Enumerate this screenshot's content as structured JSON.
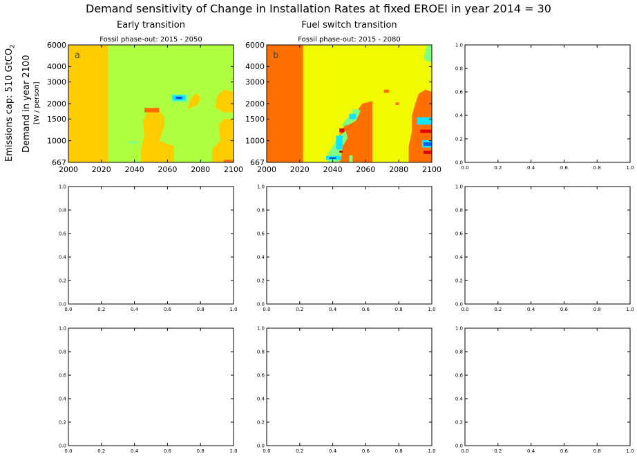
{
  "figure": {
    "suptitle": "Demand sensitivity of Change in Installation Rates at fixed EROEI in year 2014 = 30",
    "col_titles": [
      "Early transition",
      "Fuel switch transition",
      ""
    ],
    "row_label_main": "Emissions cap: 510 GtCO",
    "row_label_main_sub": "2",
    "ylabel_line1": "Demand in year 2100",
    "ylabel_line2": "[W / person]"
  },
  "colors": {
    "orange_dark": "#ff7000",
    "orange": "#ffcc00",
    "yellow": "#f0fa00",
    "green_yellow": "#adff40",
    "light_green": "#80ff80",
    "cyan": "#10e5ff",
    "blue": "#0060ff",
    "dark_blue": "#0010c0",
    "red": "#e00000",
    "dark_red": "#b00000"
  },
  "chart_data": [
    {
      "id": "a",
      "type": "heatmap",
      "panel_letter": "a",
      "title": "Fossil phase-out: 2015 - 2050",
      "x_ticks": [
        "2000",
        "2020",
        "2040",
        "2060",
        "2080",
        "2100"
      ],
      "y_ticks": [
        "667",
        "1000",
        "1500",
        "2000",
        "3000",
        "4000",
        "6000"
      ],
      "xlim": [
        2000,
        2100
      ],
      "ylim": [
        667,
        6000
      ],
      "y_scale": "log",
      "background": "green_yellow",
      "regions": [
        {
          "color": "orange",
          "pts": [
            [
              2000,
              667
            ],
            [
              2000,
              6000
            ],
            [
              2024,
              6000
            ],
            [
              2024,
              667
            ]
          ]
        },
        {
          "color": "orange",
          "pts": [
            [
              2044,
              667
            ],
            [
              2044,
              850
            ],
            [
              2046,
              1100
            ],
            [
              2045,
              1450
            ],
            [
              2048,
              1700
            ],
            [
              2055,
              1750
            ],
            [
              2058,
              1550
            ],
            [
              2058,
              1300
            ],
            [
              2055,
              1000
            ],
            [
              2064,
              900
            ],
            [
              2064,
              667
            ]
          ]
        },
        {
          "color": "orange",
          "pts": [
            [
              2072,
              1800
            ],
            [
              2074,
              2200
            ],
            [
              2078,
              2450
            ],
            [
              2080,
              2200
            ],
            [
              2078,
              1950
            ],
            [
              2074,
              1850
            ]
          ]
        },
        {
          "color": "orange",
          "pts": [
            [
              2087,
              667
            ],
            [
              2087,
              850
            ],
            [
              2092,
              1000
            ],
            [
              2091,
              1350
            ],
            [
              2094,
              1500
            ],
            [
              2100,
              1500
            ],
            [
              2100,
              667
            ]
          ]
        },
        {
          "color": "orange",
          "pts": [
            [
              2089,
              1850
            ],
            [
              2090,
              2300
            ],
            [
              2094,
              2600
            ],
            [
              2100,
              2500
            ],
            [
              2100,
              1700
            ],
            [
              2094,
              1700
            ]
          ]
        },
        {
          "color": "orange_dark",
          "pts": [
            [
              2046,
              1700
            ],
            [
              2046,
              1850
            ],
            [
              2055,
              1850
            ],
            [
              2055,
              1700
            ]
          ]
        },
        {
          "color": "orange_dark",
          "pts": [
            [
              2094,
              667
            ],
            [
              2094,
              700
            ],
            [
              2100,
              700
            ],
            [
              2100,
              667
            ]
          ]
        },
        {
          "color": "light_green",
          "pts": [
            [
              2036,
              950
            ],
            [
              2036,
              990
            ],
            [
              2042,
              990
            ],
            [
              2042,
              950
            ]
          ]
        },
        {
          "color": "light_green",
          "pts": [
            [
              2062,
              2050
            ],
            [
              2062,
              2400
            ],
            [
              2072,
              2400
            ],
            [
              2072,
              2050
            ]
          ]
        },
        {
          "color": "cyan",
          "pts": [
            [
              2063,
              2120
            ],
            [
              2063,
              2340
            ],
            [
              2071,
              2340
            ],
            [
              2071,
              2120
            ]
          ]
        },
        {
          "color": "blue",
          "pts": [
            [
              2065,
              2180
            ],
            [
              2065,
              2280
            ],
            [
              2069,
              2280
            ],
            [
              2069,
              2180
            ]
          ]
        },
        {
          "color": "dark_blue",
          "pts": [
            [
              2066,
              2210
            ],
            [
              2066,
              2250
            ],
            [
              2068,
              2250
            ],
            [
              2068,
              2210
            ]
          ]
        }
      ]
    },
    {
      "id": "b",
      "type": "heatmap",
      "panel_letter": "b",
      "title": "Fossil phase-out: 2015 - 2080",
      "x_ticks": [
        "2000",
        "2020",
        "2040",
        "2060",
        "2080",
        "2100"
      ],
      "y_ticks": [
        "667",
        "1000",
        "1500",
        "2000",
        "3000",
        "4000",
        "6000"
      ],
      "xlim": [
        2000,
        2100
      ],
      "ylim": [
        667,
        6000
      ],
      "y_scale": "log",
      "background": "yellow",
      "regions": [
        {
          "color": "orange_dark",
          "pts": [
            [
              2000,
              667
            ],
            [
              2000,
              6000
            ],
            [
              2022,
              6000
            ],
            [
              2022,
              667
            ]
          ]
        },
        {
          "color": "orange_dark",
          "pts": [
            [
              2040,
              667
            ],
            [
              2040,
              850
            ],
            [
              2043,
              1050
            ],
            [
              2046,
              1250
            ],
            [
              2050,
              1500
            ],
            [
              2054,
              1700
            ],
            [
              2058,
              2000
            ],
            [
              2064,
              2100
            ],
            [
              2064,
              667
            ]
          ]
        },
        {
          "color": "orange_dark",
          "pts": [
            [
              2071,
              2450
            ],
            [
              2071,
              2600
            ],
            [
              2074,
              2600
            ],
            [
              2074,
              2450
            ]
          ]
        },
        {
          "color": "orange_dark",
          "pts": [
            [
              2078,
              1950
            ],
            [
              2078,
              2050
            ],
            [
              2080,
              2050
            ],
            [
              2080,
              1950
            ]
          ]
        },
        {
          "color": "orange_dark",
          "pts": [
            [
              2086,
              667
            ],
            [
              2086,
              900
            ],
            [
              2088,
              1200
            ],
            [
              2088,
              1600
            ],
            [
              2090,
              2000
            ],
            [
              2092,
              2400
            ],
            [
              2096,
              2600
            ],
            [
              2100,
              2500
            ],
            [
              2100,
              667
            ]
          ]
        },
        {
          "color": "light_green",
          "pts": [
            [
              2037,
              667
            ],
            [
              2037,
              780
            ],
            [
              2041,
              950
            ],
            [
              2044,
              1100
            ],
            [
              2048,
              1200
            ],
            [
              2049,
              1050
            ],
            [
              2046,
              900
            ],
            [
              2045,
              720
            ],
            [
              2044,
              667
            ]
          ]
        },
        {
          "color": "light_green",
          "pts": [
            [
              2045,
              1300
            ],
            [
              2048,
              1500
            ],
            [
              2052,
              1600
            ],
            [
              2055,
              1800
            ],
            [
              2057,
              1750
            ],
            [
              2054,
              1450
            ],
            [
              2050,
              1350
            ]
          ]
        },
        {
          "color": "light_green",
          "pts": [
            [
              2052,
              1650
            ],
            [
              2052,
              1800
            ],
            [
              2056,
              1800
            ],
            [
              2056,
              1650
            ]
          ]
        },
        {
          "color": "light_green",
          "pts": [
            [
              2050,
              667
            ],
            [
              2050,
              760
            ],
            [
              2052,
              760
            ],
            [
              2052,
              667
            ]
          ]
        },
        {
          "color": "light_green",
          "pts": [
            [
              2095,
              4600
            ],
            [
              2097,
              6000
            ],
            [
              2100,
              6000
            ],
            [
              2100,
              4300
            ]
          ]
        },
        {
          "color": "cyan",
          "pts": [
            [
              2036,
              700
            ],
            [
              2036,
              750
            ],
            [
              2045,
              750
            ],
            [
              2045,
              700
            ]
          ]
        },
        {
          "color": "cyan",
          "pts": [
            [
              2042,
              850
            ],
            [
              2042,
              1100
            ],
            [
              2046,
              1100
            ],
            [
              2046,
              850
            ]
          ]
        },
        {
          "color": "cyan",
          "pts": [
            [
              2050,
              1500
            ],
            [
              2050,
              1650
            ],
            [
              2054,
              1650
            ],
            [
              2054,
              1500
            ]
          ]
        },
        {
          "color": "cyan",
          "pts": [
            [
              2091,
              1350
            ],
            [
              2091,
              1550
            ],
            [
              2100,
              1550
            ],
            [
              2100,
              1350
            ]
          ]
        },
        {
          "color": "cyan",
          "pts": [
            [
              2094,
              880
            ],
            [
              2094,
              1010
            ],
            [
              2100,
              1010
            ],
            [
              2100,
              880
            ]
          ]
        },
        {
          "color": "blue",
          "pts": [
            [
              2095,
              910
            ],
            [
              2095,
              970
            ],
            [
              2100,
              970
            ],
            [
              2100,
              910
            ]
          ]
        },
        {
          "color": "dark_blue",
          "pts": [
            [
              2038,
              715
            ],
            [
              2038,
              730
            ],
            [
              2042,
              730
            ],
            [
              2042,
              715
            ]
          ]
        },
        {
          "color": "red",
          "pts": [
            [
              2044,
              1170
            ],
            [
              2044,
              1260
            ],
            [
              2047,
              1260
            ],
            [
              2047,
              1170
            ]
          ]
        },
        {
          "color": "red",
          "pts": [
            [
              2093,
              1160
            ],
            [
              2093,
              1230
            ],
            [
              2100,
              1230
            ],
            [
              2100,
              1160
            ]
          ]
        },
        {
          "color": "red",
          "pts": [
            [
              2095,
              780
            ],
            [
              2095,
              830
            ],
            [
              2100,
              830
            ],
            [
              2100,
              780
            ]
          ]
        },
        {
          "color": "dark_red",
          "pts": [
            [
              2044,
              800
            ],
            [
              2044,
              830
            ],
            [
              2046,
              830
            ],
            [
              2046,
              800
            ]
          ]
        }
      ]
    },
    {
      "id": "c",
      "type": "scatter",
      "title": "",
      "x_ticks": [
        "0.0",
        "0.2",
        "0.4",
        "0.6",
        "0.8",
        "1.0"
      ],
      "y_ticks": [
        "0.0",
        "0.2",
        "0.4",
        "0.6",
        "0.8",
        "1.0"
      ],
      "xlim": [
        0,
        1
      ],
      "ylim": [
        0,
        1
      ]
    },
    {
      "id": "d",
      "type": "scatter",
      "title": "",
      "x_ticks": [
        "0.0",
        "0.2",
        "0.4",
        "0.6",
        "0.8",
        "1.0"
      ],
      "y_ticks": [
        "0.0",
        "0.2",
        "0.4",
        "0.6",
        "0.8",
        "1.0"
      ],
      "xlim": [
        0,
        1
      ],
      "ylim": [
        0,
        1
      ]
    },
    {
      "id": "e",
      "type": "scatter",
      "title": "",
      "x_ticks": [
        "0.0",
        "0.2",
        "0.4",
        "0.6",
        "0.8",
        "1.0"
      ],
      "y_ticks": [
        "0.0",
        "0.2",
        "0.4",
        "0.6",
        "0.8",
        "1.0"
      ],
      "xlim": [
        0,
        1
      ],
      "ylim": [
        0,
        1
      ]
    },
    {
      "id": "f",
      "type": "scatter",
      "title": "",
      "x_ticks": [
        "0.0",
        "0.2",
        "0.4",
        "0.6",
        "0.8",
        "1.0"
      ],
      "y_ticks": [
        "0.0",
        "0.2",
        "0.4",
        "0.6",
        "0.8",
        "1.0"
      ],
      "xlim": [
        0,
        1
      ],
      "ylim": [
        0,
        1
      ]
    },
    {
      "id": "g",
      "type": "scatter",
      "title": "",
      "x_ticks": [
        "0.0",
        "0.2",
        "0.4",
        "0.6",
        "0.8",
        "1.0"
      ],
      "y_ticks": [
        "0.0",
        "0.2",
        "0.4",
        "0.6",
        "0.8",
        "1.0"
      ],
      "xlim": [
        0,
        1
      ],
      "ylim": [
        0,
        1
      ]
    },
    {
      "id": "h",
      "type": "scatter",
      "title": "",
      "x_ticks": [
        "0.0",
        "0.2",
        "0.4",
        "0.6",
        "0.8",
        "1.0"
      ],
      "y_ticks": [
        "0.0",
        "0.2",
        "0.4",
        "0.6",
        "0.8",
        "1.0"
      ],
      "xlim": [
        0,
        1
      ],
      "ylim": [
        0,
        1
      ]
    },
    {
      "id": "i",
      "type": "scatter",
      "title": "",
      "x_ticks": [
        "0.0",
        "0.2",
        "0.4",
        "0.6",
        "0.8",
        "1.0"
      ],
      "y_ticks": [
        "0.0",
        "0.2",
        "0.4",
        "0.6",
        "0.8",
        "1.0"
      ],
      "xlim": [
        0,
        1
      ],
      "ylim": [
        0,
        1
      ]
    }
  ]
}
